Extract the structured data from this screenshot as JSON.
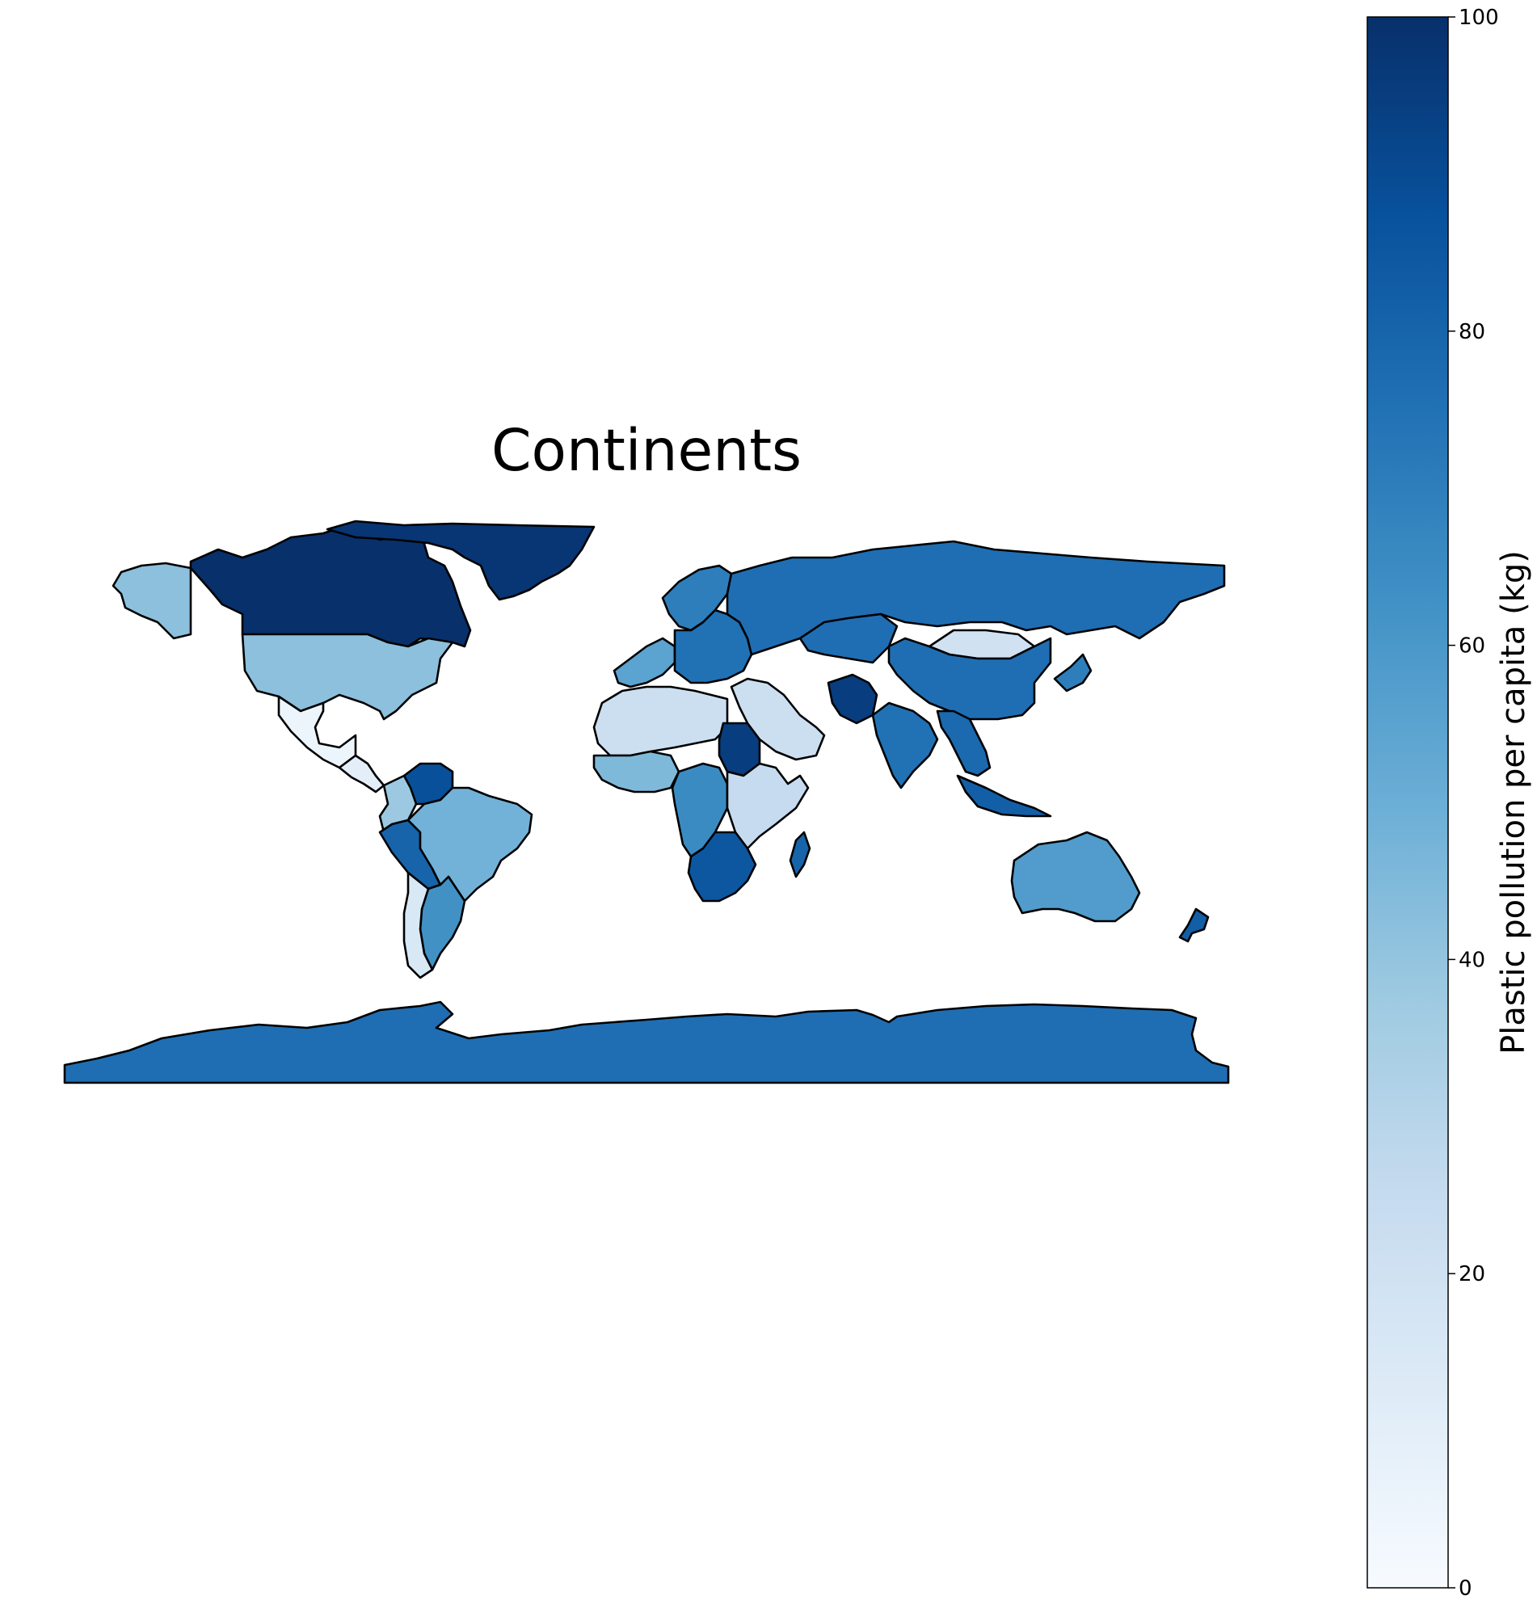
{
  "title": "Continents",
  "colorbar": {
    "label": "Plastic pollution per capita (kg)",
    "min": 0,
    "max": 100,
    "ticks": [
      0,
      20,
      40,
      60,
      80,
      100
    ],
    "colormap": "Blues",
    "colors": [
      "#f7fbff",
      "#deebf7",
      "#c6dbef",
      "#9ecae1",
      "#6baed6",
      "#4292c6",
      "#2171b5",
      "#08519c",
      "#08306b"
    ]
  },
  "map_data": {
    "type": "choropleth",
    "projection": "plate-carree",
    "regions": [
      {
        "name": "Canada",
        "value": 100
      },
      {
        "name": "Greenland",
        "value": 98
      },
      {
        "name": "Alaska",
        "value": 42
      },
      {
        "name": "United States",
        "value": 42
      },
      {
        "name": "Mexico",
        "value": 5
      },
      {
        "name": "Central America",
        "value": 10
      },
      {
        "name": "Venezuela",
        "value": 88
      },
      {
        "name": "Colombia",
        "value": 38
      },
      {
        "name": "Peru",
        "value": 80
      },
      {
        "name": "Bolivia",
        "value": 95
      },
      {
        "name": "Brazil",
        "value": 48
      },
      {
        "name": "Argentina",
        "value": 63
      },
      {
        "name": "Chile",
        "value": 15
      },
      {
        "name": "North Africa",
        "value": 22
      },
      {
        "name": "West Africa",
        "value": 45
      },
      {
        "name": "Sudan",
        "value": 95
      },
      {
        "name": "Central Africa",
        "value": 65
      },
      {
        "name": "East Africa",
        "value": 25
      },
      {
        "name": "Southern Africa",
        "value": 85
      },
      {
        "name": "Madagascar",
        "value": 80
      },
      {
        "name": "Western Europe",
        "value": 55
      },
      {
        "name": "Eastern Europe",
        "value": 75
      },
      {
        "name": "Scandinavia",
        "value": 70
      },
      {
        "name": "Russia",
        "value": 76
      },
      {
        "name": "Mongolia",
        "value": 20
      },
      {
        "name": "China",
        "value": 76
      },
      {
        "name": "Kazakhstan",
        "value": 76
      },
      {
        "name": "Middle East",
        "value": 22
      },
      {
        "name": "Afghanistan",
        "value": 95
      },
      {
        "name": "India",
        "value": 75
      },
      {
        "name": "Southeast Asia",
        "value": 78
      },
      {
        "name": "Indonesia",
        "value": 82
      },
      {
        "name": "Japan",
        "value": 70
      },
      {
        "name": "Australia",
        "value": 58
      },
      {
        "name": "New Zealand",
        "value": 82
      },
      {
        "name": "Antarctica",
        "value": 76
      }
    ]
  }
}
